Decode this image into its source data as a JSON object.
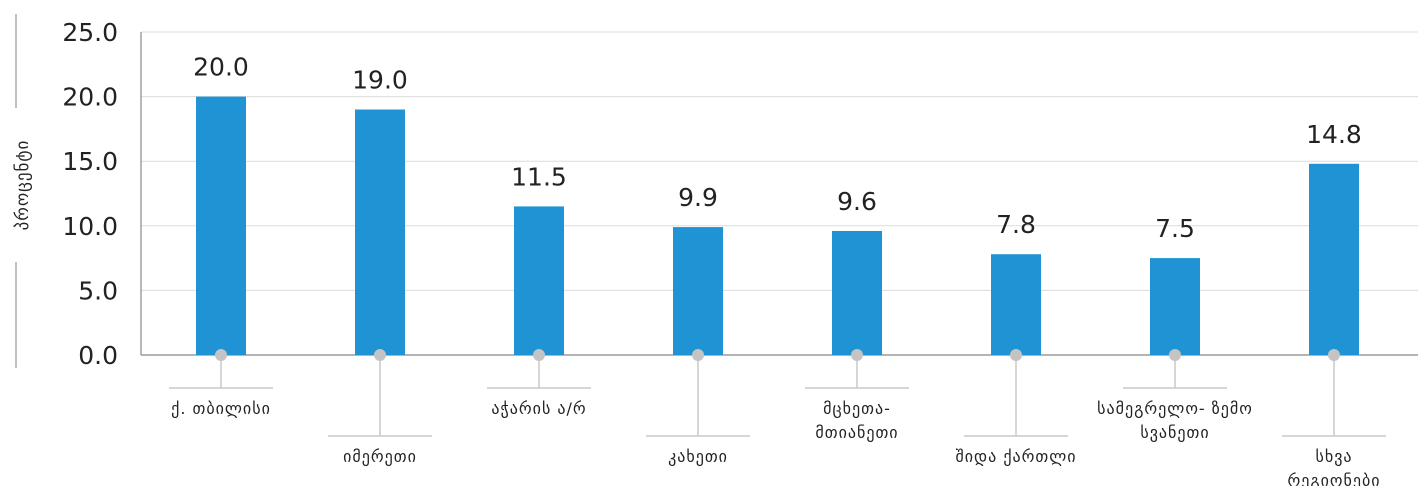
{
  "chart_data": {
    "type": "bar",
    "title": "",
    "xlabel": "",
    "ylabel": "პროცენტი",
    "ylim": [
      0,
      25
    ],
    "yticks": [
      "0.0",
      "5.0",
      "10.0",
      "15.0",
      "20.0",
      "25.0"
    ],
    "grid": true,
    "legend": "none",
    "bar_color": "#1f93d3",
    "categories": [
      [
        "ქ. თბილისი"
      ],
      [
        "იმერეთი"
      ],
      [
        "აჭარის ა/რ"
      ],
      [
        "კახეთი"
      ],
      [
        "მცხეთა-",
        "მთიანეთი"
      ],
      [
        "შიდა ქართლი"
      ],
      [
        "სამეგრელო- ზემო",
        "სვანეთი"
      ],
      [
        "სხვა",
        "რეგიონები"
      ]
    ],
    "values": [
      20.0,
      19.0,
      11.5,
      9.9,
      9.6,
      7.8,
      7.5,
      14.8
    ],
    "value_labels": [
      "20.0",
      "19.0",
      "11.5",
      "9.9",
      "9.6",
      "7.8",
      "7.5",
      "14.8"
    ]
  }
}
